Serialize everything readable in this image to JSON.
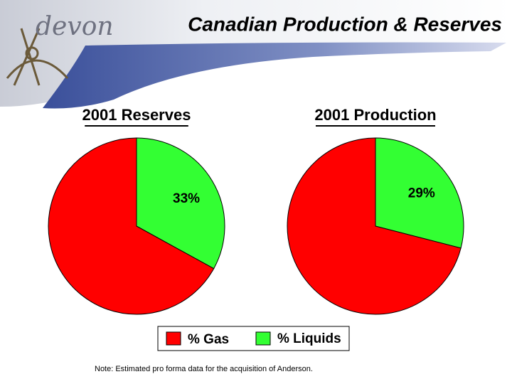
{
  "header": {
    "logo": "devon",
    "title": "Canadian Production & Reserves"
  },
  "chart_data": [
    {
      "type": "pie",
      "title": "2001 Reserves",
      "categories": [
        "% Gas",
        "% Liquids"
      ],
      "values": [
        67,
        33
      ],
      "value_labels": [
        null,
        "33%"
      ],
      "colors": [
        "#ff0000",
        "#33ff33"
      ]
    },
    {
      "type": "pie",
      "title": "2001 Production",
      "categories": [
        "% Gas",
        "% Liquids"
      ],
      "values": [
        71,
        29
      ],
      "value_labels": [
        null,
        "29%"
      ],
      "colors": [
        "#ff0000",
        "#33ff33"
      ]
    }
  ],
  "note": "Note: Estimated pro forma data for the acquisition of Anderson."
}
